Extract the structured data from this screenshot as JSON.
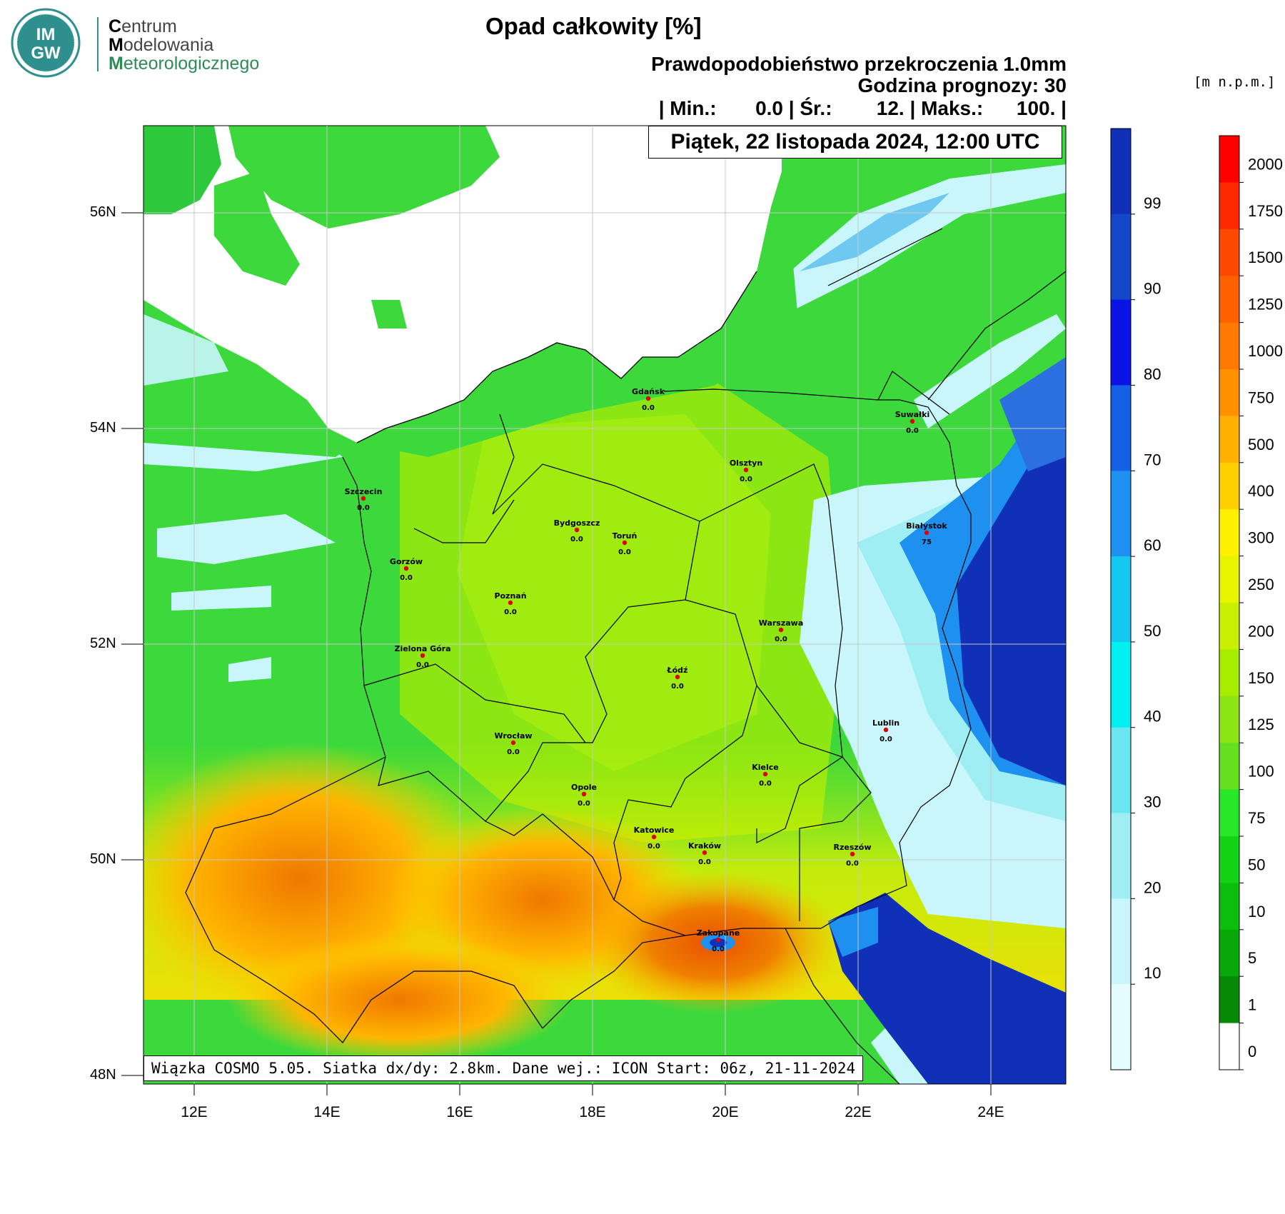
{
  "logo": {
    "badge_top": "IM",
    "badge_bottom": "GW",
    "line1_initial": "C",
    "line1_rest": "entrum",
    "line2_initial": "M",
    "line2_rest": "odelowania",
    "line3_initial": "M",
    "line3_rest": "eteorologicznego"
  },
  "header": {
    "title": "Opad całkowity [%]",
    "subtitle1": "Prawdopodobieństwo przekroczenia 1.0mm",
    "subtitle2": "Godzina prognozy: 30",
    "stats": "| Min.:       0.0 | Śr.:        12. | Maks.:      100. |"
  },
  "date_label": "Piątek, 22 listopada 2024, 12:00 UTC",
  "footer": "Wiązka COSMO 5.05. Siatka dx/dy: 2.8km. Dane wej.: ICON Start: 06z, 21-11-2024",
  "elevation_units": "[m n.p.m.]",
  "axes": {
    "lat_labels": [
      "56N",
      "54N",
      "52N",
      "50N",
      "48N"
    ],
    "lon_labels": [
      "12E",
      "14E",
      "16E",
      "18E",
      "20E",
      "22E",
      "24E"
    ]
  },
  "probability_legend": {
    "labels": [
      "99",
      "90",
      "80",
      "70",
      "60",
      "50",
      "40",
      "30",
      "20",
      "10"
    ],
    "colors": [
      "#1030b8",
      "#1448c8",
      "#0a14e6",
      "#1460e6",
      "#1e90f0",
      "#14c8f0",
      "#00f0f0",
      "#6ae6f0",
      "#9eeef4",
      "#c8f6fa",
      "#e4fcfe"
    ]
  },
  "elevation_legend": {
    "labels": [
      "2000",
      "1750",
      "1500",
      "1250",
      "1000",
      "750",
      "500",
      "400",
      "300",
      "250",
      "200",
      "150",
      "125",
      "100",
      "75",
      "50",
      "10",
      "5",
      "1",
      "0"
    ],
    "colors": [
      "#ff0000",
      "#ff2800",
      "#ff4800",
      "#ff6000",
      "#ff7800",
      "#ff9000",
      "#ffb000",
      "#ffd000",
      "#fff000",
      "#e6f400",
      "#c8f000",
      "#a8ec00",
      "#8ce614",
      "#64e01e",
      "#28e628",
      "#14d214",
      "#0cbe0c",
      "#08a808",
      "#068a06",
      "#ffffff"
    ]
  },
  "cities": [
    {
      "name": "Gdańsk",
      "value": "0.0"
    },
    {
      "name": "Suwałki",
      "value": "0.0"
    },
    {
      "name": "Olsztyn",
      "value": "0.0"
    },
    {
      "name": "Szczecin",
      "value": "0.0"
    },
    {
      "name": "Bydgoszcz",
      "value": "0.0"
    },
    {
      "name": "Toruń",
      "value": "0.0"
    },
    {
      "name": "Białystok",
      "value": "75"
    },
    {
      "name": "Gorzów",
      "value": "0.0"
    },
    {
      "name": "Poznań",
      "value": "0.0"
    },
    {
      "name": "Warszawa",
      "value": "0.0"
    },
    {
      "name": "Zielona Góra",
      "value": "0.0"
    },
    {
      "name": "Łódź",
      "value": "0.0"
    },
    {
      "name": "Lublin",
      "value": "0.0"
    },
    {
      "name": "Wrocław",
      "value": "0.0"
    },
    {
      "name": "Kielce",
      "value": "0.0"
    },
    {
      "name": "Opole",
      "value": "0.0"
    },
    {
      "name": "Katowice",
      "value": "0.0"
    },
    {
      "name": "Kraków",
      "value": "0.0"
    },
    {
      "name": "Rzeszów",
      "value": "0.0"
    },
    {
      "name": "Zakopane",
      "value": "0.0"
    }
  ]
}
